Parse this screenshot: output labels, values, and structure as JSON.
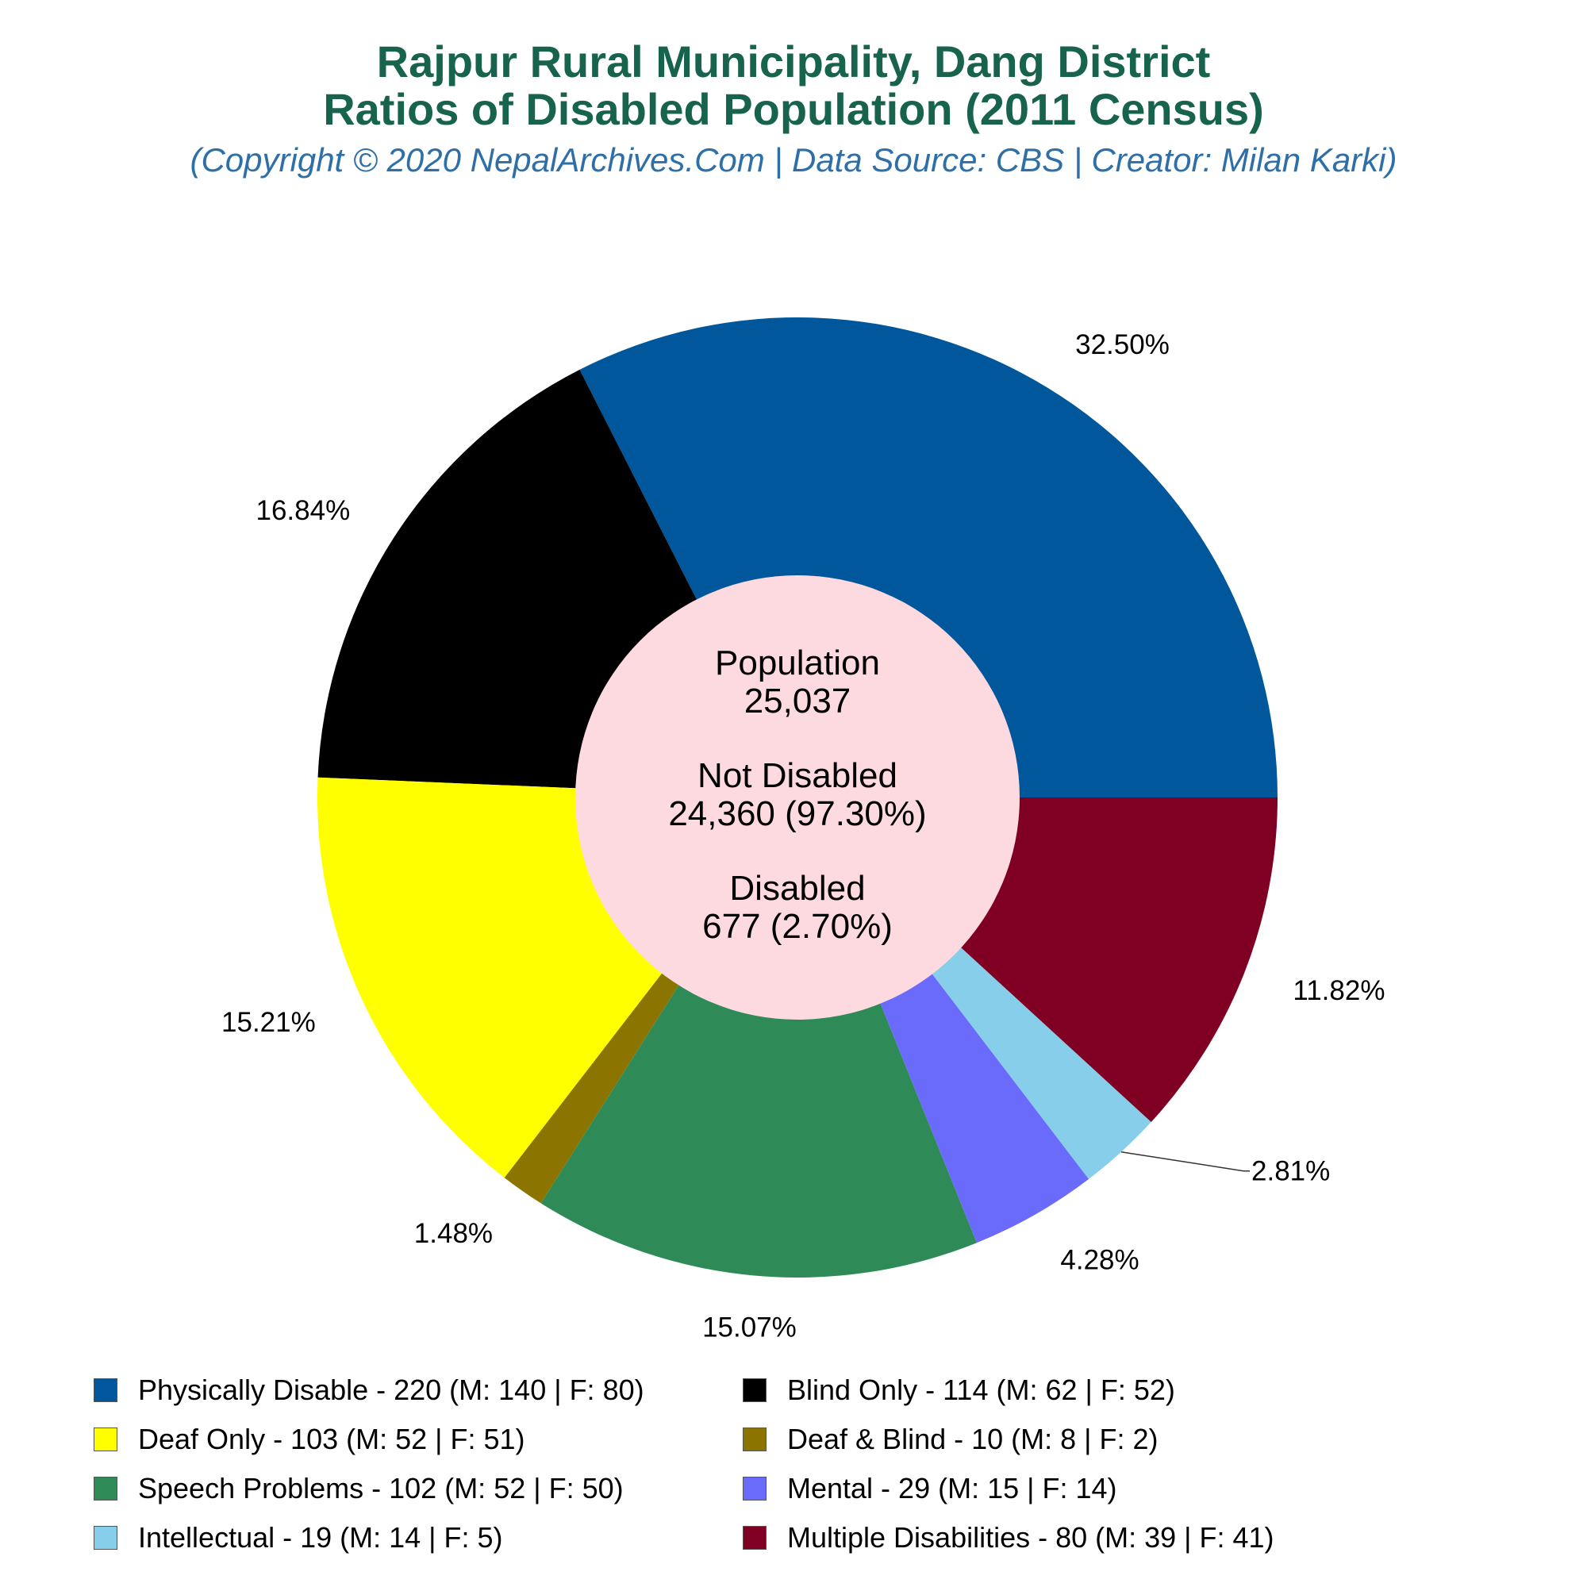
{
  "header": {
    "title_line1": "Rajpur Rural Municipality, Dang District",
    "title_line2": "Ratios of Disabled Population (2011 Census)",
    "subtitle": "(Copyright © 2020 NepalArchives.Com | Data Source: CBS | Creator: Milan Karki)"
  },
  "center": {
    "population_label": "Population",
    "population_value": "25,037",
    "not_disabled_label": "Not Disabled",
    "not_disabled_value": "24,360 (97.30%)",
    "disabled_label": "Disabled",
    "disabled_value": "677 (2.70%)",
    "color": "#fdd9e0"
  },
  "chart_data": {
    "type": "pie",
    "style": "donut",
    "categories": [
      "Physically Disable",
      "Blind Only",
      "Deaf Only",
      "Deaf & Blind",
      "Speech Problems",
      "Mental",
      "Intellectual",
      "Multiple Disabilities"
    ],
    "values": [
      220,
      114,
      103,
      10,
      102,
      29,
      19,
      80
    ],
    "percent_labels": [
      "32.50%",
      "16.84%",
      "15.21%",
      "1.48%",
      "15.07%",
      "4.28%",
      "2.81%",
      "11.82%"
    ],
    "colors": [
      "#01579b",
      "#000000",
      "#ffff00",
      "#8b7500",
      "#2e8b57",
      "#6b6bfb",
      "#87ceeb",
      "#7f0022"
    ],
    "legend_placement": "bottom",
    "legend": [
      {
        "text": "Physically Disable - 220 (M: 140 | F: 80)",
        "color": "#01579b"
      },
      {
        "text": "Blind Only - 114 (M: 62 | F: 52)",
        "color": "#000000"
      },
      {
        "text": "Deaf Only - 103 (M: 52 | F: 51)",
        "color": "#ffff00"
      },
      {
        "text": "Deaf & Blind - 10 (M: 8 | F: 2)",
        "color": "#8b7500"
      },
      {
        "text": "Speech Problems - 102 (M: 52 | F: 50)",
        "color": "#2e8b57"
      },
      {
        "text": "Mental - 29 (M: 15 | F: 14)",
        "color": "#6b6bfb"
      },
      {
        "text": "Intellectual - 19 (M: 14 | F: 5)",
        "color": "#87ceeb"
      },
      {
        "text": "Multiple Disabilities - 80 (M: 39 | F: 41)",
        "color": "#7f0022"
      }
    ]
  }
}
